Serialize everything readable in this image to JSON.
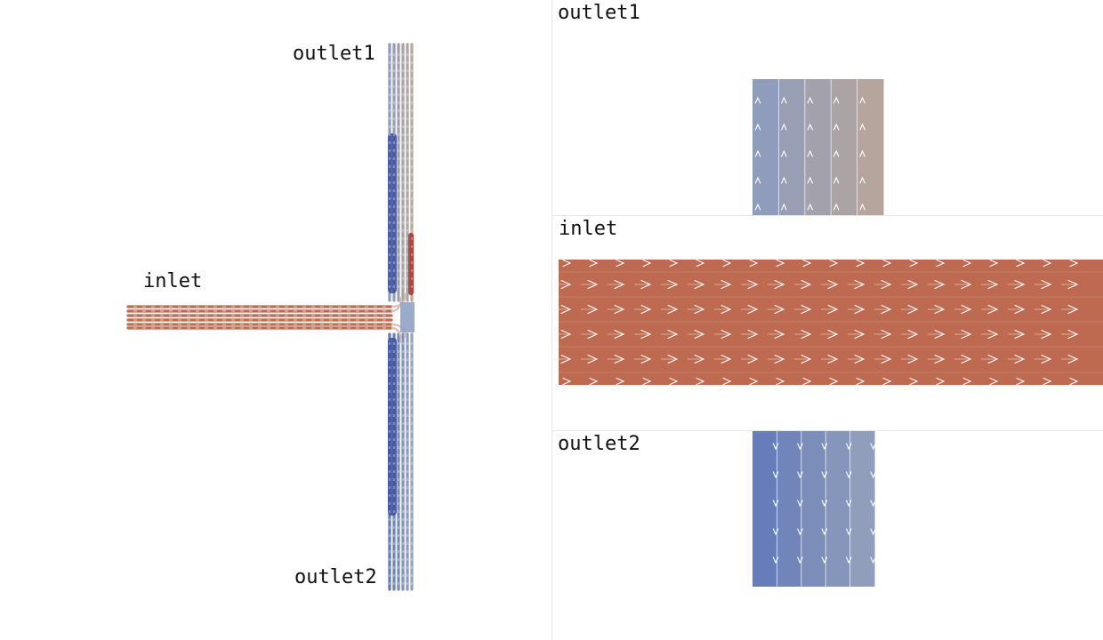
{
  "main_view": {
    "labels": {
      "outlet1": "outlet1",
      "inlet": "inlet",
      "outlet2": "outlet2"
    }
  },
  "panels": {
    "outlet1": {
      "label": "outlet1"
    },
    "inlet": {
      "label": "inlet"
    },
    "outlet2": {
      "label": "outlet2"
    }
  },
  "colors": {
    "inlet_flow": "#bd6a51",
    "outlet1_left": "#8a9bc0",
    "outlet1_right": "#baa698",
    "outlet2_left": "#6179b9",
    "outlet2_right": "#95a2bb",
    "outlet_dark_blue": "#3c4fa0",
    "outlet_dark_red": "#a83a32",
    "arrow": "#ffffff",
    "separator": "#e6e6e6"
  }
}
